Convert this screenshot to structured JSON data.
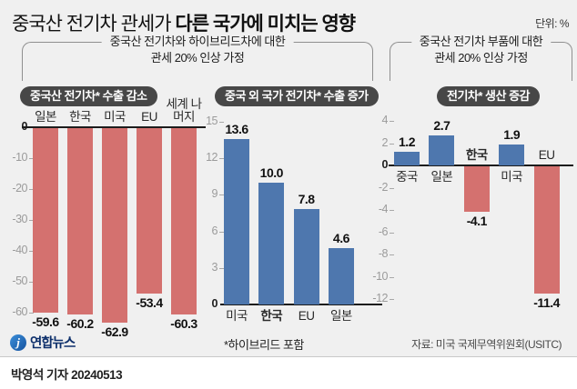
{
  "title": {
    "regular": "중국산 전기차 관세가",
    "bold": "다른 국가에 미치는 영향"
  },
  "unit_label": "단위: %",
  "assumptions": [
    {
      "line1": "중국산 전기차와 하이브리드차에 대한",
      "line2": "관세 20% 인상 가정"
    },
    {
      "line1": "중국산 전기차 부품에 대한",
      "line2": "관세 20% 인상 가정"
    }
  ],
  "chart_data": [
    {
      "type": "bar",
      "title": "중국산 전기차* 수출 감소",
      "categories": [
        "일본",
        "한국",
        "미국",
        "EU",
        "세계 나머지"
      ],
      "values": [
        -59.6,
        -60.2,
        -62.9,
        -53.4,
        -60.3
      ],
      "yticks": [
        0,
        -10,
        -20,
        -30,
        -40,
        -50,
        -60
      ],
      "ylim": [
        -65,
        0
      ],
      "bar_color": "#d4716f",
      "bold_categories": [],
      "grid": false,
      "legend": "none"
    },
    {
      "type": "bar",
      "title": "중국 외 국가 전기차* 수출 증가",
      "categories": [
        "미국",
        "한국",
        "EU",
        "일본"
      ],
      "values": [
        13.6,
        10.0,
        7.8,
        4.6
      ],
      "yticks": [
        15,
        12,
        9,
        6,
        3,
        0
      ],
      "ylim": [
        0,
        15
      ],
      "bar_color": "#4e77ae",
      "bold_categories": [
        "한국"
      ],
      "grid": false,
      "legend": "none"
    },
    {
      "type": "bar",
      "title": "전기차* 생산 증감",
      "categories": [
        "중국",
        "일본",
        "한국",
        "미국",
        "EU"
      ],
      "values": [
        1.2,
        2.7,
        -4.1,
        1.9,
        -11.4
      ],
      "yticks": [
        4,
        2,
        0,
        -2,
        -4,
        -6,
        -8,
        -10,
        -12
      ],
      "ylim": [
        -13,
        4.5
      ],
      "positive_color": "#4e77ae",
      "negative_color": "#d4716f",
      "bold_categories": [
        "한국"
      ],
      "grid": false,
      "legend": "none"
    }
  ],
  "footnote": "*하이브리드 포함",
  "source": "자료: 미국 국제무역위원회(USITC)",
  "logo_text": "연합뉴스",
  "byline": "박영석 기자 20240513",
  "colors": {
    "background": "#f0f0f0",
    "footer_background": "#ffffff",
    "bar_red": "#d4716f",
    "bar_blue": "#4e77ae",
    "badge": "#474747",
    "axis": "#1c1c1c",
    "tick": "#9b9b9b",
    "bracket": "#8f8f8f",
    "logo_navy": "#0d2f6b"
  }
}
